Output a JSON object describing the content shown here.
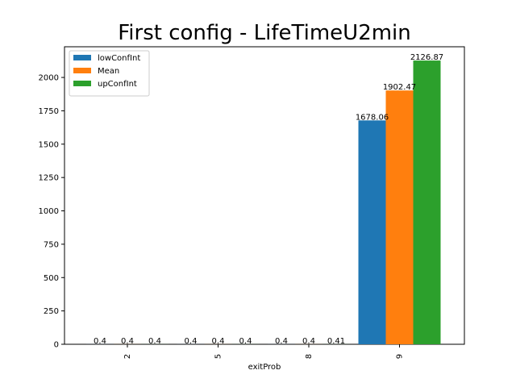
{
  "chart_data": {
    "type": "bar",
    "title": "First config - LifeTimeU2min",
    "xlabel": "exitProb",
    "ylabel": "",
    "categories": [
      "2",
      "5",
      "8",
      "9"
    ],
    "ylim": [
      0,
      2230
    ],
    "yticks": [
      0,
      250,
      500,
      750,
      1000,
      1250,
      1500,
      1750,
      2000
    ],
    "legend_position": "top-left",
    "series": [
      {
        "name": "lowConfInt",
        "color": "#1f77b4",
        "values": [
          0.4,
          0.4,
          0.4,
          1678.06
        ],
        "labels": [
          "0.4",
          "0.4",
          "0.4",
          "1678.06"
        ]
      },
      {
        "name": "Mean",
        "color": "#ff7f0e",
        "values": [
          0.4,
          0.4,
          0.4,
          1902.47
        ],
        "labels": [
          "0.4",
          "0.4",
          "0.4",
          "1902.47"
        ]
      },
      {
        "name": "upConfInt",
        "color": "#2ca02c",
        "values": [
          0.4,
          0.4,
          0.41,
          2126.87
        ],
        "labels": [
          "0.4",
          "0.4",
          "0.41",
          "2126.87"
        ]
      }
    ]
  }
}
